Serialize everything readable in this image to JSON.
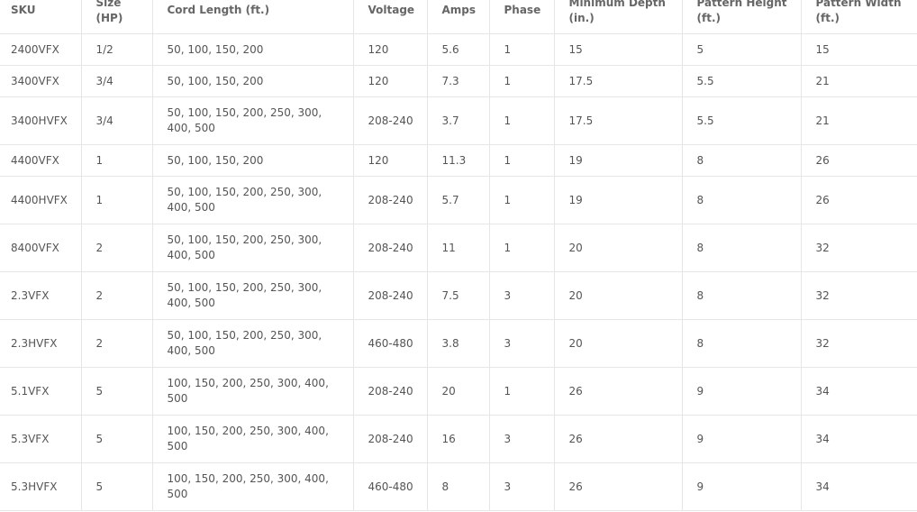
{
  "table": {
    "headers": [
      "SKU",
      "Size (HP)",
      "Cord Length (ft.)",
      "Voltage",
      "Amps",
      "Phase",
      "Minimum Depth (in.)",
      "Pattern Height (ft.)",
      "Pattern Width (ft.)"
    ],
    "rows": [
      [
        "2400VFX",
        "1/2",
        "50, 100, 150, 200",
        "120",
        "5.6",
        "1",
        "15",
        "5",
        "15"
      ],
      [
        "3400VFX",
        "3/4",
        "50, 100, 150, 200",
        "120",
        "7.3",
        "1",
        "17.5",
        "5.5",
        "21"
      ],
      [
        "3400HVFX",
        "3/4",
        "50, 100, 150, 200, 250, 300, 400, 500",
        "208-240",
        "3.7",
        "1",
        "17.5",
        "5.5",
        "21"
      ],
      [
        "4400VFX",
        "1",
        "50, 100, 150, 200",
        "120",
        "11.3",
        "1",
        "19",
        "8",
        "26"
      ],
      [
        "4400HVFX",
        "1",
        "50, 100, 150, 200, 250, 300, 400, 500",
        "208-240",
        "5.7",
        "1",
        "19",
        "8",
        "26"
      ],
      [
        "8400VFX",
        "2",
        "50, 100, 150, 200, 250, 300, 400, 500",
        "208-240",
        "11",
        "1",
        "20",
        "8",
        "32"
      ],
      [
        "2.3VFX",
        "2",
        "50, 100, 150, 200, 250, 300, 400, 500",
        "208-240",
        "7.5",
        "3",
        "20",
        "8",
        "32"
      ],
      [
        "2.3HVFX",
        "2",
        "50, 100, 150, 200, 250, 300, 400, 500",
        "460-480",
        "3.8",
        "3",
        "20",
        "8",
        "32"
      ],
      [
        "5.1VFX",
        "5",
        "100, 150, 200, 250, 300, 400, 500",
        "208-240",
        "20",
        "1",
        "26",
        "9",
        "34"
      ],
      [
        "5.3VFX",
        "5",
        "100, 150, 200, 250, 300, 400, 500",
        "208-240",
        "16",
        "3",
        "26",
        "9",
        "34"
      ],
      [
        "5.3HVFX",
        "5",
        "100, 150, 200, 250, 300, 400, 500",
        "460-480",
        "8",
        "3",
        "26",
        "9",
        "34"
      ]
    ]
  }
}
